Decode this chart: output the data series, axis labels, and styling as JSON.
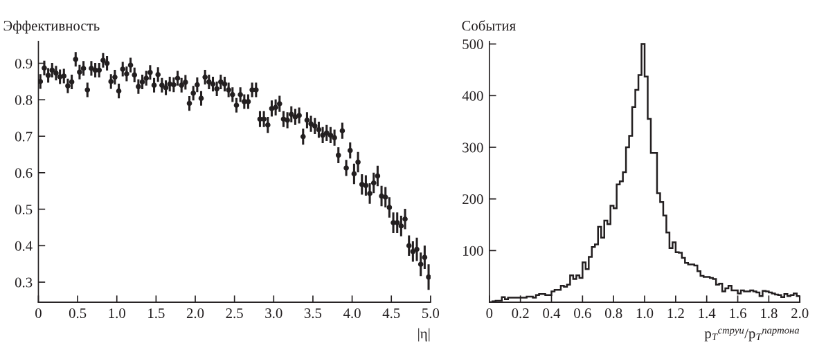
{
  "chart_data": [
    {
      "type": "scatter",
      "ylabel": "Эффективность",
      "xlabel": "|η|",
      "marker": "circle",
      "grid": false,
      "xlim": [
        0,
        5
      ],
      "ylim": [
        0.245,
        0.96
      ],
      "xticks": [
        0,
        0.5,
        {
          "value": 1,
          "label": "1.0"
        },
        1.5,
        {
          "value": 2,
          "label": "2.0"
        },
        2.5,
        {
          "value": 3,
          "label": "3.0"
        },
        3.5,
        {
          "value": 4,
          "label": "4.0"
        },
        4.5,
        {
          "value": 5,
          "label": "5.0"
        }
      ],
      "yticks": [
        0.3,
        0.4,
        0.5,
        0.6,
        0.7,
        0.8,
        0.9
      ],
      "series": [
        {
          "color": "#231f20",
          "x": [
            0.025,
            0.075,
            0.125,
            0.175,
            0.225,
            0.275,
            0.325,
            0.375,
            0.425,
            0.475,
            0.525,
            0.575,
            0.625,
            0.675,
            0.725,
            0.775,
            0.825,
            0.875,
            0.925,
            0.975,
            1.025,
            1.075,
            1.125,
            1.175,
            1.225,
            1.275,
            1.325,
            1.375,
            1.425,
            1.475,
            1.525,
            1.575,
            1.625,
            1.675,
            1.725,
            1.775,
            1.825,
            1.875,
            1.925,
            1.975,
            2.025,
            2.075,
            2.125,
            2.175,
            2.225,
            2.275,
            2.325,
            2.375,
            2.425,
            2.475,
            2.525,
            2.575,
            2.625,
            2.675,
            2.725,
            2.775,
            2.825,
            2.875,
            2.925,
            2.975,
            3.025,
            3.075,
            3.125,
            3.175,
            3.225,
            3.275,
            3.325,
            3.375,
            3.425,
            3.475,
            3.525,
            3.575,
            3.625,
            3.675,
            3.725,
            3.775,
            3.825,
            3.875,
            3.925,
            3.975,
            4.025,
            4.075,
            4.125,
            4.175,
            4.225,
            4.275,
            4.325,
            4.375,
            4.425,
            4.475,
            4.525,
            4.575,
            4.625,
            4.675,
            4.725,
            4.775,
            4.825,
            4.875,
            4.925,
            4.975
          ],
          "values": [
            0.85,
            0.887,
            0.867,
            0.881,
            0.873,
            0.863,
            0.865,
            0.838,
            0.849,
            0.911,
            0.876,
            0.886,
            0.827,
            0.886,
            0.881,
            0.881,
            0.908,
            0.9,
            0.85,
            0.862,
            0.824,
            0.884,
            0.871,
            0.895,
            0.868,
            0.836,
            0.849,
            0.859,
            0.875,
            0.84,
            0.869,
            0.84,
            0.833,
            0.843,
            0.841,
            0.859,
            0.84,
            0.848,
            0.79,
            0.818,
            0.841,
            0.804,
            0.862,
            0.849,
            0.843,
            0.83,
            0.849,
            0.843,
            0.827,
            0.814,
            0.785,
            0.814,
            0.795,
            0.795,
            0.827,
            0.827,
            0.747,
            0.747,
            0.731,
            0.776,
            0.779,
            0.789,
            0.747,
            0.744,
            0.76,
            0.753,
            0.757,
            0.699,
            0.744,
            0.734,
            0.728,
            0.718,
            0.703,
            0.709,
            0.703,
            0.696,
            0.648,
            0.715,
            0.613,
            0.661,
            0.597,
            0.629,
            0.568,
            0.565,
            0.543,
            0.572,
            0.591,
            0.536,
            0.533,
            0.505,
            0.463,
            0.463,
            0.454,
            0.473,
            0.4,
            0.384,
            0.39,
            0.349,
            0.368,
            0.314
          ],
          "errors": [
            0.02,
            0.02,
            0.02,
            0.02,
            0.02,
            0.02,
            0.02,
            0.02,
            0.02,
            0.02,
            0.02,
            0.02,
            0.02,
            0.02,
            0.02,
            0.02,
            0.02,
            0.02,
            0.02,
            0.02,
            0.02,
            0.02,
            0.02,
            0.02,
            0.02,
            0.02,
            0.02,
            0.02,
            0.02,
            0.02,
            0.02,
            0.02,
            0.02,
            0.02,
            0.02,
            0.02,
            0.02,
            0.02,
            0.02,
            0.02,
            0.02,
            0.02,
            0.02,
            0.02,
            0.02,
            0.02,
            0.02,
            0.02,
            0.02,
            0.02,
            0.02,
            0.02,
            0.02,
            0.02,
            0.02,
            0.02,
            0.022,
            0.022,
            0.022,
            0.022,
            0.022,
            0.022,
            0.022,
            0.022,
            0.022,
            0.022,
            0.022,
            0.022,
            0.022,
            0.022,
            0.022,
            0.022,
            0.022,
            0.022,
            0.022,
            0.022,
            0.022,
            0.022,
            0.022,
            0.022,
            0.028,
            0.028,
            0.028,
            0.028,
            0.028,
            0.028,
            0.028,
            0.028,
            0.028,
            0.028,
            0.028,
            0.028,
            0.028,
            0.028,
            0.028,
            0.028,
            0.032,
            0.032,
            0.032,
            0.035
          ]
        }
      ]
    },
    {
      "type": "histogram",
      "ylabel": "События",
      "xlabel": "p$_{T}$$^{струи}$/p$_{T}$$^{партона}$",
      "grid": false,
      "color": "#231f20",
      "xlim": [
        0,
        2
      ],
      "ylim": [
        0,
        505
      ],
      "xticks": [
        0,
        0.2,
        0.4,
        0.6,
        0.8,
        {
          "value": 1,
          "label": "1.0"
        },
        1.2,
        1.4,
        1.6,
        1.8,
        {
          "value": 2,
          "label": "2.0"
        }
      ],
      "yticks": [
        100,
        200,
        300,
        400,
        500
      ],
      "bins": [
        0,
        0.02,
        0.04,
        0.06,
        0.08,
        0.1,
        0.12,
        0.14,
        0.16,
        0.18,
        0.2,
        0.22,
        0.24,
        0.26,
        0.28,
        0.3,
        0.32,
        0.34,
        0.36,
        0.38,
        0.4,
        0.42,
        0.44,
        0.46,
        0.48,
        0.5,
        0.52,
        0.54,
        0.56,
        0.58,
        0.6,
        0.62,
        0.64,
        0.66,
        0.68,
        0.7,
        0.72,
        0.74,
        0.76,
        0.78,
        0.8,
        0.82,
        0.84,
        0.86,
        0.88,
        0.9,
        0.92,
        0.94,
        0.96,
        0.98,
        1.0,
        1.02,
        1.04,
        1.06,
        1.08,
        1.1,
        1.12,
        1.14,
        1.16,
        1.18,
        1.2,
        1.22,
        1.24,
        1.26,
        1.28,
        1.3,
        1.32,
        1.34,
        1.36,
        1.38,
        1.4,
        1.42,
        1.44,
        1.46,
        1.48,
        1.5,
        1.52,
        1.54,
        1.56,
        1.58,
        1.6,
        1.62,
        1.64,
        1.66,
        1.68,
        1.7,
        1.72,
        1.74,
        1.76,
        1.78,
        1.8,
        1.82,
        1.84,
        1.86,
        1.88,
        1.9,
        1.92,
        1.94,
        1.96,
        1.98,
        2.0
      ],
      "values": [
        0,
        2,
        3,
        3,
        10,
        6,
        9,
        9,
        9,
        9,
        9,
        9,
        11,
        11,
        9,
        14,
        16,
        16,
        14,
        14,
        21,
        24,
        24,
        32,
        30,
        34,
        52,
        45,
        52,
        47,
        77,
        64,
        88,
        107,
        112,
        146,
        125,
        158,
        151,
        187,
        182,
        228,
        234,
        252,
        300,
        322,
        378,
        411,
        440,
        500,
        437,
        355,
        289,
        289,
        211,
        194,
        168,
        135,
        105,
        116,
        97,
        96,
        86,
        76,
        73,
        73,
        71,
        60,
        51,
        49,
        49,
        47,
        45,
        34,
        36,
        21,
        27,
        32,
        23,
        23,
        17,
        23,
        21,
        21,
        23,
        21,
        19,
        12,
        22,
        21,
        19,
        17,
        15,
        14,
        10,
        16,
        12,
        14,
        17,
        12
      ]
    }
  ]
}
